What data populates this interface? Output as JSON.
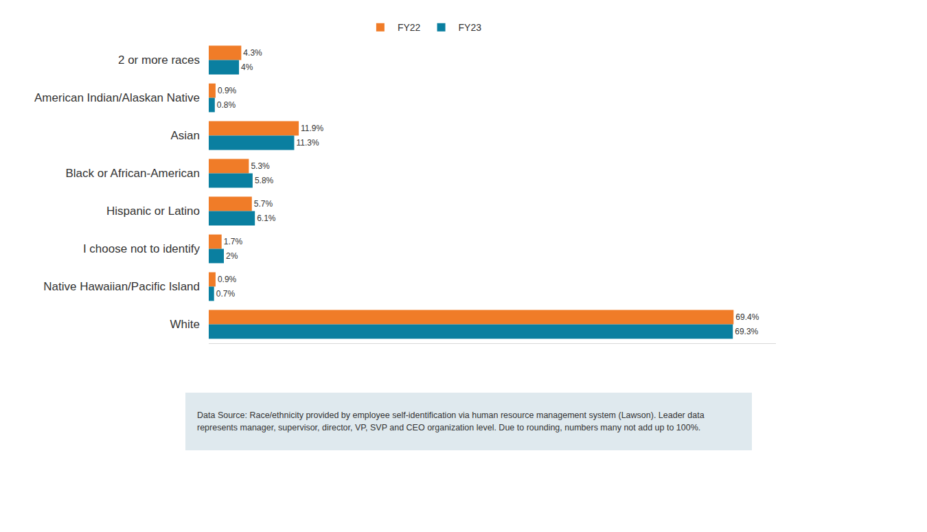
{
  "chart_data": {
    "type": "bar",
    "orientation": "horizontal",
    "categories": [
      "2 or more races",
      "American Indian/Alaskan Native",
      "Asian",
      "Black or African-American",
      "Hispanic or Latino",
      "I choose not to identify",
      "Native Hawaiian/Pacific Island",
      "White"
    ],
    "series": [
      {
        "name": "FY22",
        "color": "#f07c28",
        "values": [
          4.3,
          0.9,
          11.9,
          5.3,
          5.7,
          1.7,
          0.9,
          69.4
        ],
        "value_labels": [
          "4.3%",
          "0.9%",
          "11.9%",
          "5.3%",
          "5.7%",
          "1.7%",
          "0.9%",
          "69.4%"
        ]
      },
      {
        "name": "FY23",
        "color": "#0a7fa0",
        "values": [
          4,
          0.8,
          11.3,
          5.8,
          6.1,
          2,
          0.7,
          69.3
        ],
        "value_labels": [
          "4%",
          "0.8%",
          "11.3%",
          "5.8%",
          "6.1%",
          "2%",
          "0.7%",
          "69.3%"
        ]
      }
    ],
    "xlim": [
      0,
      75
    ],
    "xticks": [],
    "grid": false,
    "legend": "top",
    "data_labels": true,
    "tick_labels": "y",
    "annotations": [
      "Data Source: Race/ethnicity provided by employee self-identification via human resource management system (Lawson). Leader data represents manager, supervisor, director, VP, SVP and CEO organization level. Due to rounding, numbers many not add up to 100%."
    ]
  }
}
